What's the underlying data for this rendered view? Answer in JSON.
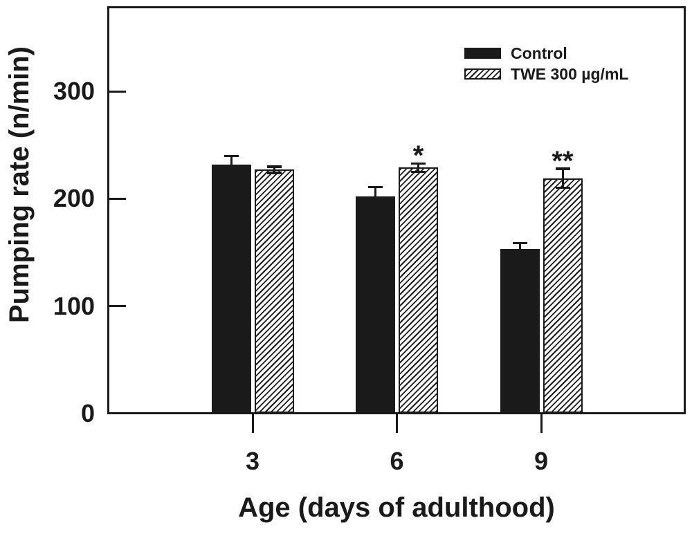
{
  "chart_data": {
    "type": "bar",
    "title": "",
    "xlabel": "Age (days of adulthood)",
    "ylabel": "Pumping rate (n/min)",
    "categories": [
      "3",
      "6",
      "9"
    ],
    "yticks": [
      0,
      100,
      200,
      300
    ],
    "ylim": [
      0,
      380
    ],
    "grid": false,
    "legend_position": "top-right-inside",
    "ink_color": "#1a1a1a",
    "background_color": "#ffffff",
    "series": [
      {
        "name": "Control",
        "style": "solid-black",
        "values": [
          232,
          202,
          153
        ],
        "errors_plus": [
          8,
          9,
          6
        ],
        "significance": [
          "",
          "",
          ""
        ]
      },
      {
        "name": "TWE 300 µg/mL",
        "style": "diagonal-hatch",
        "values": [
          227,
          229,
          219
        ],
        "errors_plus": [
          3,
          4,
          9
        ],
        "significance": [
          "",
          "*",
          "**"
        ]
      }
    ]
  },
  "legend": {
    "items": [
      {
        "label": "Control",
        "swatch": "solid-black"
      },
      {
        "label": "TWE 300 µg/mL",
        "swatch": "diagonal-hatch"
      }
    ]
  }
}
